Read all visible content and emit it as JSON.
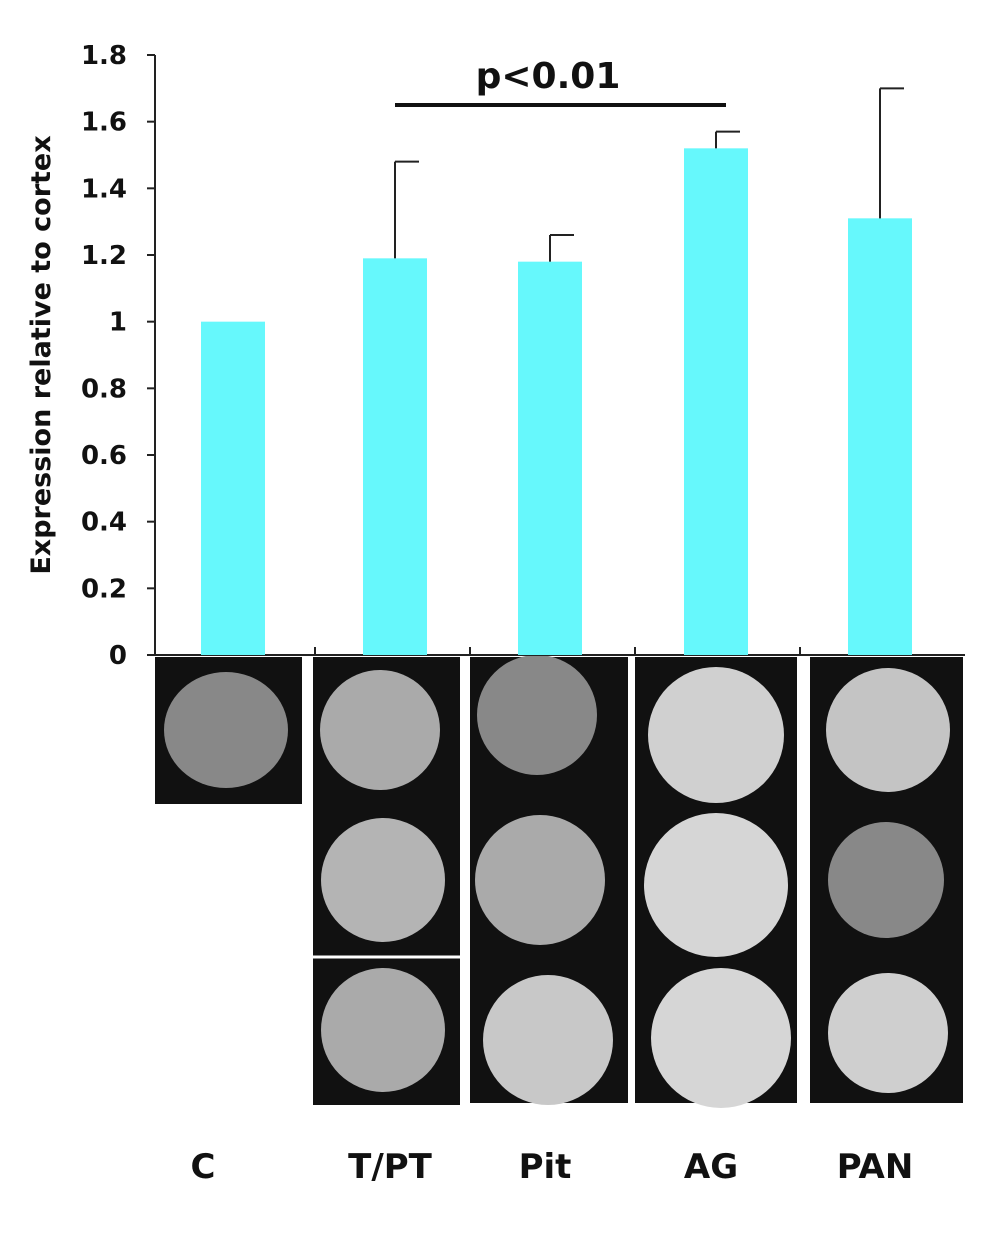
{
  "chart_data": {
    "type": "bar",
    "y_label": "Expression relative to cortex",
    "annotation": "p<0.01",
    "categories": [
      "C",
      "T/PT",
      "Pit",
      "AG",
      "PAN"
    ],
    "values": [
      1.0,
      1.19,
      1.18,
      1.52,
      1.31
    ],
    "errors": [
      null,
      0.29,
      0.08,
      0.05,
      0.39
    ],
    "color": "#66f8fc",
    "ylim": [
      0,
      1.8
    ],
    "yticks": [
      0,
      0.2,
      0.4,
      0.6,
      0.8,
      1,
      1.2,
      1.4,
      1.6,
      1.8
    ],
    "grid": false
  }
}
